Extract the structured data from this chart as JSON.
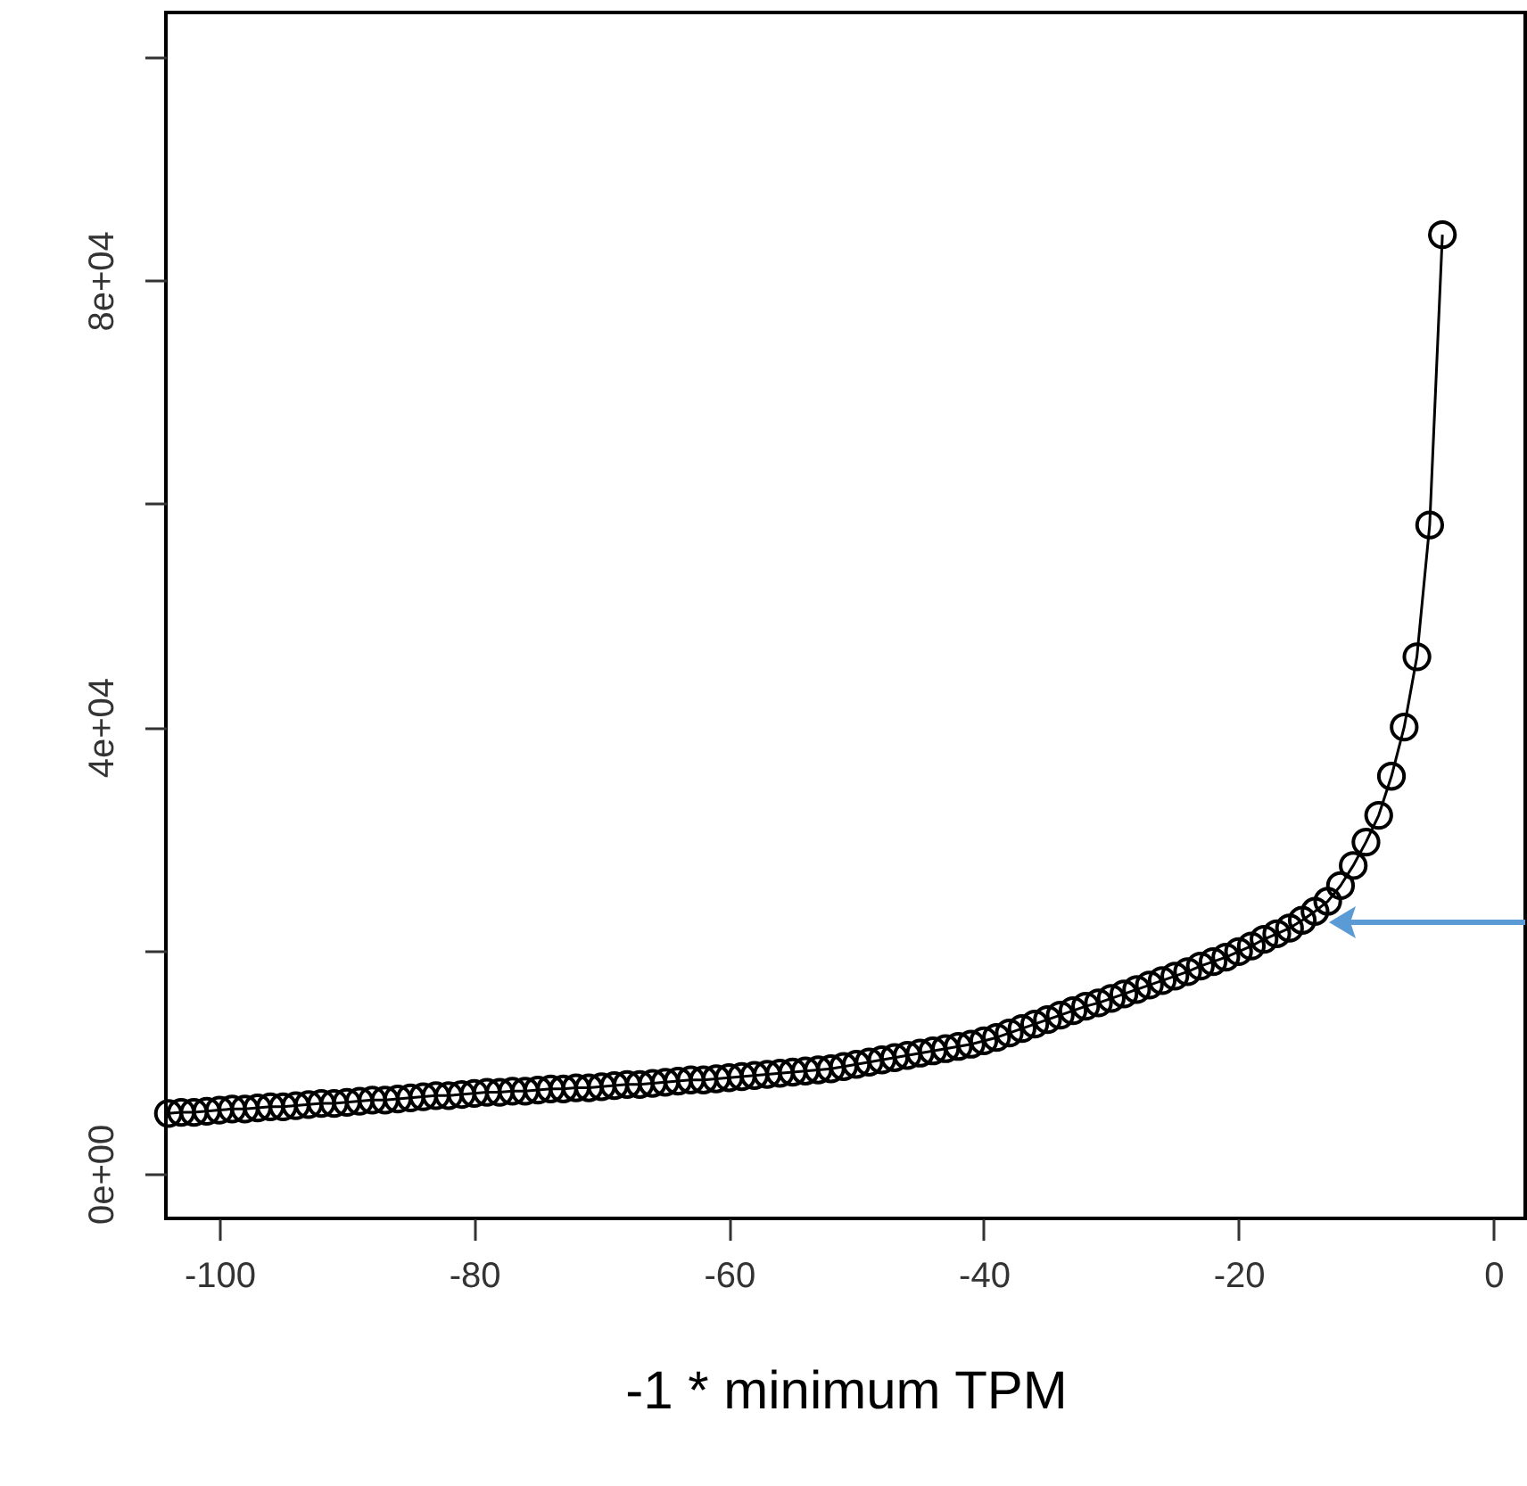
{
  "chart_data": {
    "type": "line",
    "xlabel": "-1 * minimum TPM",
    "marker": "circle",
    "line_style": "solid",
    "grid": false,
    "xlim": [
      -104.2,
      2.5
    ],
    "xticks": [
      -100,
      -80,
      -60,
      -40,
      -20,
      0
    ],
    "ylim": [
      -4000,
      104000
    ],
    "yticks": [
      {
        "value": 0,
        "label": "0e+00"
      },
      {
        "value": 20000,
        "label": null
      },
      {
        "value": 40000,
        "label": "4e+04"
      },
      {
        "value": 60000,
        "label": null
      },
      {
        "value": 80000,
        "label": "8e+04"
      },
      {
        "value": 100000,
        "label": null
      }
    ],
    "x": [
      -104,
      -103,
      -102,
      -101,
      -100,
      -99,
      -98,
      -97,
      -96,
      -95,
      -94,
      -93,
      -92,
      -91,
      -90,
      -89,
      -88,
      -87,
      -86,
      -85,
      -84,
      -83,
      -82,
      -81,
      -80,
      -79,
      -78,
      -77,
      -76,
      -75,
      -74,
      -73,
      -72,
      -71,
      -70,
      -69,
      -68,
      -67,
      -66,
      -65,
      -64,
      -63,
      -62,
      -61,
      -60,
      -59,
      -58,
      -57,
      -56,
      -55,
      -54,
      -53,
      -52,
      -51,
      -50,
      -49,
      -48,
      -47,
      -46,
      -45,
      -44,
      -43,
      -42,
      -41,
      -40,
      -39,
      -38,
      -37,
      -36,
      -35,
      -34,
      -33,
      -32,
      -31,
      -30,
      -29,
      -28,
      -27,
      -26,
      -25,
      -24,
      -23,
      -22,
      -21,
      -20,
      -19,
      -18,
      -17,
      -16,
      -15,
      -14,
      -13,
      -12,
      -11,
      -10,
      -9,
      -8,
      -7,
      -6,
      -5,
      -4
    ],
    "series": [
      {
        "color": "#000000",
        "values": [
          5400,
          5500,
          5500,
          5600,
          5700,
          5800,
          5800,
          5900,
          6000,
          6000,
          6100,
          6200,
          6300,
          6300,
          6400,
          6500,
          6600,
          6600,
          6700,
          6800,
          6900,
          7000,
          7000,
          7100,
          7200,
          7300,
          7300,
          7400,
          7400,
          7500,
          7600,
          7600,
          7700,
          7700,
          7800,
          7900,
          8000,
          8000,
          8100,
          8200,
          8300,
          8400,
          8400,
          8500,
          8600,
          8700,
          8800,
          8900,
          9000,
          9100,
          9200,
          9300,
          9400,
          9600,
          9800,
          10000,
          10200,
          10400,
          10600,
          10800,
          11000,
          11200,
          11400,
          11600,
          11900,
          12200,
          12600,
          13000,
          13400,
          13800,
          14200,
          14600,
          15000,
          15300,
          15700,
          16100,
          16500,
          16900,
          17300,
          17700,
          18100,
          18600,
          19000,
          19400,
          19900,
          20400,
          21000,
          21500,
          22000,
          22700,
          23500,
          24400,
          25800,
          27600,
          29700,
          32100,
          35600,
          40000,
          46300,
          58100,
          84100
        ]
      }
    ]
  }
}
